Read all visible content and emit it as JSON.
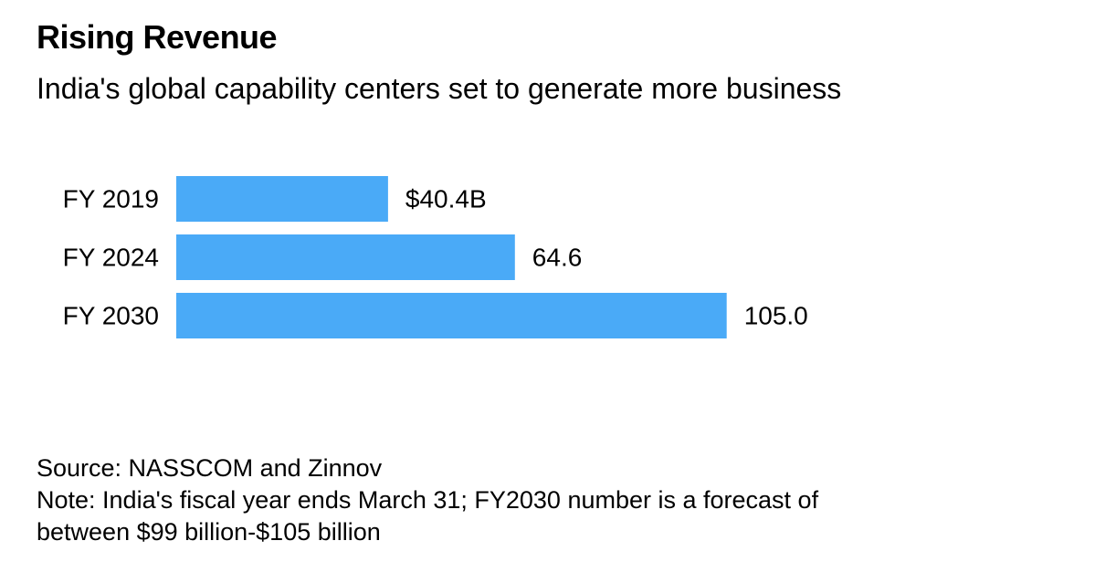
{
  "header": {
    "title": "Rising Revenue",
    "subtitle": "India's global capability centers set to generate more business"
  },
  "chart_data": {
    "type": "bar",
    "orientation": "horizontal",
    "categories": [
      "FY 2019",
      "FY 2024",
      "FY 2030"
    ],
    "values": [
      40.4,
      64.6,
      105.0
    ],
    "value_labels": [
      "$40.4B",
      "64.6",
      "105.0"
    ],
    "title": "Rising Revenue",
    "subtitle": "India's global capability centers set to generate more business",
    "xlabel": "",
    "ylabel": "",
    "grid": false,
    "bar_color": "#4aaaf7"
  },
  "footer": {
    "source": "Source: NASSCOM and Zinnov",
    "note_line1": "Note: India's fiscal year ends March 31; FY2030 number is a forecast of",
    "note_line2": "between $99 billion-$105 billion"
  }
}
